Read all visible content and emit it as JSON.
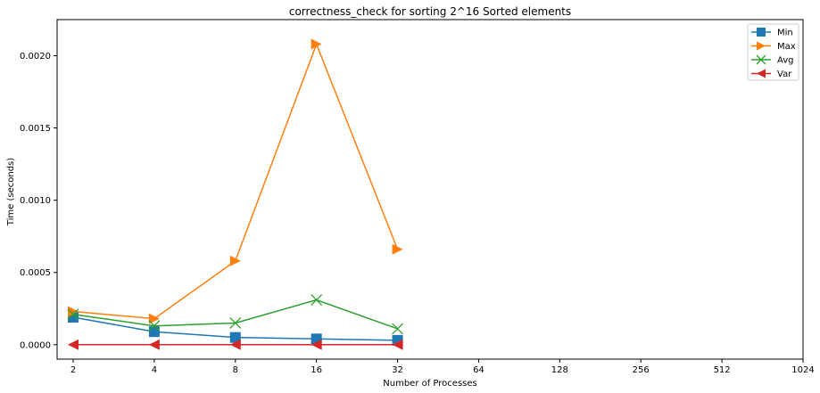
{
  "chart_data": {
    "type": "line",
    "title": "correctness_check for sorting 2^16 Sorted elements",
    "xlabel": "Number of Processes",
    "ylabel": "Time (seconds)",
    "x_scale": "log2",
    "x_ticks": [
      2,
      4,
      8,
      16,
      32,
      64,
      128,
      256,
      512,
      1024
    ],
    "x_tick_labels": [
      "2",
      "4",
      "8",
      "16",
      "32",
      "64",
      "128",
      "256",
      "512",
      "1024"
    ],
    "ylim": [
      -0.0001,
      0.00225
    ],
    "y_ticks": [
      0.0,
      0.0005,
      0.001,
      0.0015,
      0.002
    ],
    "y_tick_labels": [
      "0.0000",
      "0.0005",
      "0.0010",
      "0.0015",
      "0.0020"
    ],
    "legend_position": "top-right",
    "grid": false,
    "x": [
      2,
      4,
      8,
      16,
      32
    ],
    "series": [
      {
        "name": "Min",
        "values": [
          0.00019,
          9e-05,
          5e-05,
          4e-05,
          3e-05
        ],
        "color": "#1f77b4",
        "marker": "square"
      },
      {
        "name": "Max",
        "values": [
          0.00023,
          0.00018,
          0.00058,
          0.00208,
          0.00066
        ],
        "color": "#ff7f0e",
        "marker": "triangle-right"
      },
      {
        "name": "Avg",
        "values": [
          0.00021,
          0.00013,
          0.00015,
          0.00031,
          0.00011
        ],
        "color": "#2ca02c",
        "marker": "x"
      },
      {
        "name": "Var",
        "values": [
          0.0,
          0.0,
          0.0,
          0.0,
          0.0
        ],
        "color": "#d62728",
        "marker": "triangle-left"
      }
    ]
  }
}
